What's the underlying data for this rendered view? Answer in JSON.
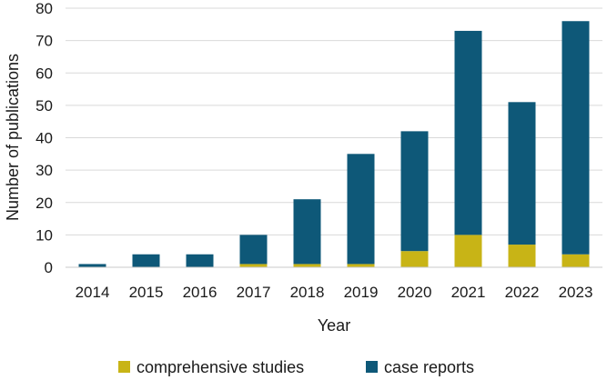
{
  "chart_data": {
    "type": "bar",
    "stacked": true,
    "categories": [
      "2014",
      "2015",
      "2016",
      "2017",
      "2018",
      "2019",
      "2020",
      "2021",
      "2022",
      "2023"
    ],
    "series": [
      {
        "name": "comprehensive studies",
        "color": "#c8b416",
        "values": [
          0,
          0,
          0,
          1,
          1,
          1,
          5,
          10,
          7,
          4
        ]
      },
      {
        "name": "case reports",
        "color": "#0e5878",
        "values": [
          1,
          4,
          4,
          9,
          20,
          34,
          37,
          63,
          44,
          72
        ]
      }
    ],
    "xlabel": "Year",
    "ylabel": "Number of publications",
    "ylim": [
      0,
      80
    ],
    "yticks": [
      "0",
      "10",
      "20",
      "30",
      "40",
      "50",
      "60",
      "70",
      "80"
    ],
    "grid": true,
    "legend_position": "bottom"
  }
}
